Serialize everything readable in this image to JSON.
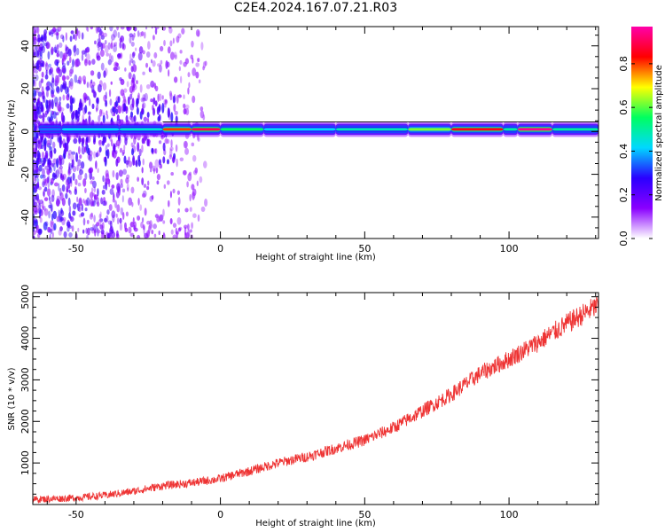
{
  "figure": {
    "title": "C2E4.2024.167.07.21.R03"
  },
  "chart_data": [
    {
      "type": "heatmap",
      "title": "",
      "xlabel": "Height of straight line (km)",
      "ylabel": "Frequency (Hz)",
      "xlim": [
        -65,
        131
      ],
      "ylim": [
        -50,
        49
      ],
      "xticks": [
        -50,
        0,
        50,
        100
      ],
      "yticks": [
        -40,
        -20,
        0,
        20,
        40
      ],
      "colorbar": {
        "label": "Normalized spectral amplitude",
        "range": [
          0,
          0.97
        ],
        "ticks": [
          0.0,
          0.2,
          0.4,
          0.6,
          0.8
        ],
        "colormap": [
          "#ffffff",
          "#8a00ff",
          "#2a00ff",
          "#00d8ff",
          "#00ff60",
          "#ffff00",
          "#ff0000",
          "#ff00aa"
        ]
      },
      "ridge": {
        "center_hz": 1,
        "segments": [
          {
            "x_start": -63,
            "x_end": -55,
            "amplitude": 0.35
          },
          {
            "x_start": -55,
            "x_end": -35,
            "amplitude": 0.42
          },
          {
            "x_start": -35,
            "x_end": -20,
            "amplitude": 0.45
          },
          {
            "x_start": -20,
            "x_end": -10,
            "amplitude": 0.8
          },
          {
            "x_start": -10,
            "x_end": 0,
            "amplitude": 0.9
          },
          {
            "x_start": 0,
            "x_end": 15,
            "amplitude": 0.55
          },
          {
            "x_start": 15,
            "x_end": 40,
            "amplitude": 0.42
          },
          {
            "x_start": 40,
            "x_end": 65,
            "amplitude": 0.48
          },
          {
            "x_start": 65,
            "x_end": 80,
            "amplitude": 0.62
          },
          {
            "x_start": 80,
            "x_end": 98,
            "amplitude": 0.85
          },
          {
            "x_start": 98,
            "x_end": 103,
            "amplitude": 0.5
          },
          {
            "x_start": 103,
            "x_end": 115,
            "amplitude": 0.95
          },
          {
            "x_start": 115,
            "x_end": 131,
            "amplitude": 0.5
          }
        ]
      }
    },
    {
      "type": "line",
      "title": "",
      "xlabel": "Height of straight line (km)",
      "ylabel": "SNR (10 * v/v)",
      "xlim": [
        -65,
        131
      ],
      "ylim": [
        0,
        5100
      ],
      "xticks": [
        -50,
        0,
        50,
        100
      ],
      "yticks": [
        1000,
        2000,
        3000,
        4000,
        5000
      ],
      "color": "#ee3333",
      "series": [
        {
          "x": [
            -65,
            -50,
            -40,
            -30,
            -20,
            -10,
            0,
            5,
            10,
            15,
            20,
            30,
            40,
            50,
            60,
            70,
            80,
            90,
            100,
            105,
            110,
            120,
            131
          ],
          "y": [
            120,
            160,
            220,
            320,
            450,
            520,
            620,
            720,
            800,
            900,
            1000,
            1150,
            1350,
            1550,
            1850,
            2250,
            2650,
            3150,
            3500,
            3700,
            3900,
            4350,
            4800
          ]
        }
      ]
    }
  ]
}
